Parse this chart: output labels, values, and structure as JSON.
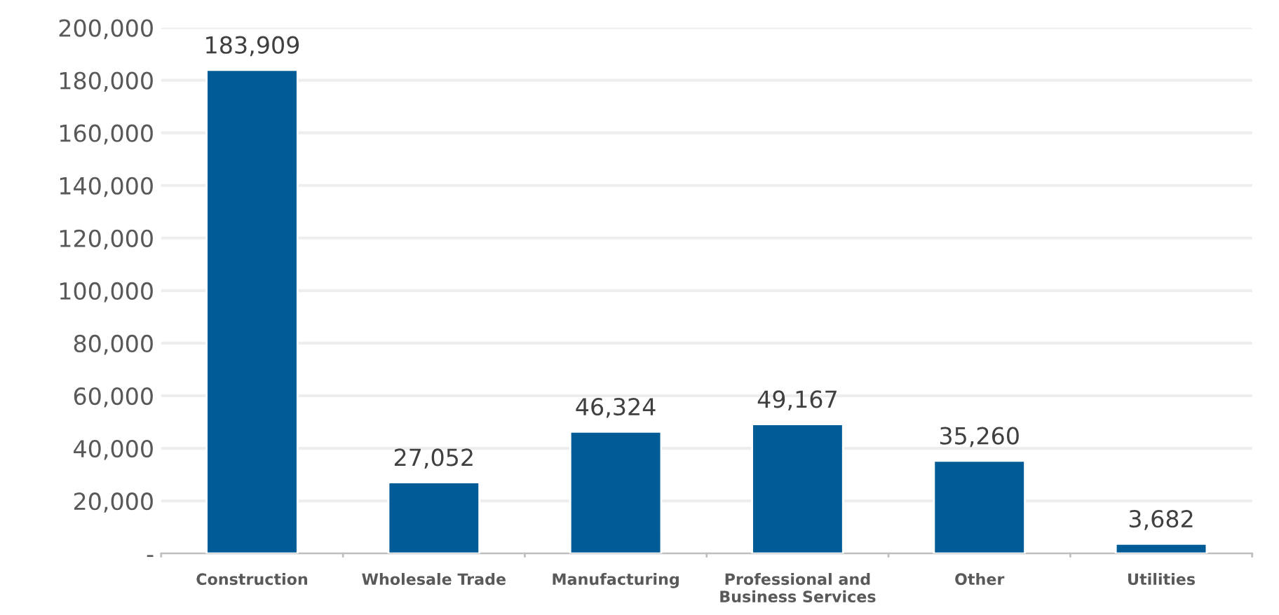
{
  "chart_data": {
    "type": "bar",
    "categories": [
      "Construction",
      "Wholesale Trade",
      "Manufacturing",
      "Professional and\nBusiness Services",
      "Other",
      "Utilities"
    ],
    "values": [
      183909,
      27052,
      46324,
      49167,
      35260,
      3682
    ],
    "color": "#005b96",
    "ylim": [
      0,
      200000
    ],
    "yticks": [
      {
        "value": 0,
        "label": "-"
      },
      {
        "value": 20000,
        "label": "20,000"
      },
      {
        "value": 40000,
        "label": "40,000"
      },
      {
        "value": 60000,
        "label": "60,000"
      },
      {
        "value": 80000,
        "label": "80,000"
      },
      {
        "value": 100000,
        "label": "100,000"
      },
      {
        "value": 120000,
        "label": "120,000"
      },
      {
        "value": 140000,
        "label": "140,000"
      },
      {
        "value": 160000,
        "label": "160,000"
      },
      {
        "value": 180000,
        "label": "180,000"
      },
      {
        "value": 200000,
        "label": "200,000"
      }
    ],
    "value_labels": [
      "183,909",
      "27,052",
      "46,324",
      "49,167",
      "35,260",
      "3,682"
    ],
    "grid": "y"
  }
}
